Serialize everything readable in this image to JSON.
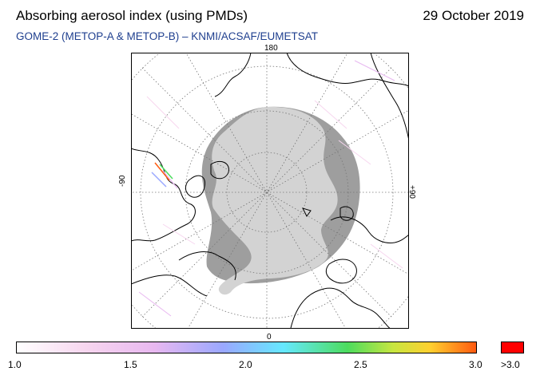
{
  "header": {
    "title": "Absorbing aerosol index (using PMDs)",
    "date": "29 October 2019",
    "subtitle": "GOME-2 (METOP-A & METOP-B)  –  KNMI/ACSAF/EUMETSAT"
  },
  "map": {
    "projection": "north polar stereographic",
    "longitude_labels": {
      "top": "180",
      "bottom": "0",
      "left": "-90",
      "right": "+90"
    },
    "colors": {
      "no_data_dark": "#9e9e9e",
      "no_data_light": "#d3d3d3",
      "coastline": "#000000",
      "graticule": "#777777"
    }
  },
  "colorbar": {
    "ticks": [
      "1.0",
      "1.5",
      "2.0",
      "2.5",
      "3.0"
    ],
    "overflow_label": ">3.0",
    "overflow_color": "#ff0000"
  }
}
